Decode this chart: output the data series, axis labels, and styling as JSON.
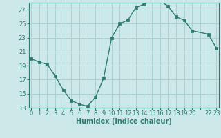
{
  "x": [
    0,
    1,
    2,
    3,
    4,
    5,
    6,
    7,
    8,
    9,
    10,
    11,
    12,
    13,
    14,
    15,
    16,
    17,
    18,
    19,
    20,
    22,
    23
  ],
  "y": [
    20.0,
    19.5,
    19.2,
    17.5,
    15.5,
    14.0,
    13.5,
    13.2,
    14.5,
    17.2,
    23.0,
    25.0,
    25.5,
    27.3,
    27.8,
    28.3,
    28.3,
    27.5,
    26.0,
    25.5,
    24.0,
    23.5,
    21.5
  ],
  "line_color": "#2d7a6e",
  "bg_color": "#cce8e8",
  "grid_color": "#aad0d0",
  "xlabel": "Humidex (Indice chaleur)",
  "ylim": [
    13,
    28
  ],
  "yticks": [
    13,
    15,
    17,
    19,
    21,
    23,
    25,
    27
  ],
  "xlim": [
    -0.3,
    23.3
  ],
  "marker": "s",
  "markersize": 2.5,
  "linewidth": 1.0,
  "tick_fontsize": 6.0,
  "xlabel_fontsize": 7.0
}
